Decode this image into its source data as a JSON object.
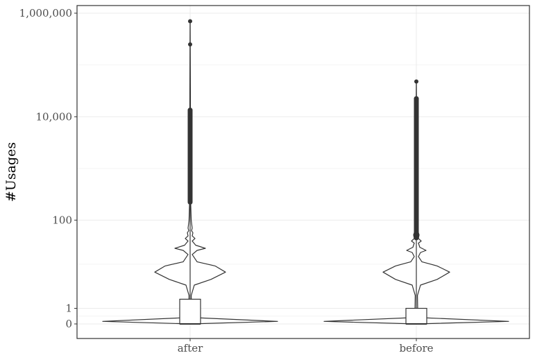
{
  "chart_data": {
    "type": "violin-boxplot",
    "title": "",
    "xlabel": "",
    "ylabel": "#Usages",
    "y_scale": "pseudo-log10",
    "y_ticks": [
      {
        "value": 0,
        "label": "0"
      },
      {
        "value": 1,
        "label": "1"
      },
      {
        "value": 100,
        "label": "100"
      },
      {
        "value": 10000,
        "label": "10,000"
      },
      {
        "value": 1000000,
        "label": "1,000,000"
      }
    ],
    "ylim": [
      0,
      1000000
    ],
    "grid": true,
    "categories": [
      "after",
      "before"
    ],
    "series": [
      {
        "category": "after",
        "box": {
          "q1": 0,
          "median": 0,
          "q3": 2,
          "whisker_low": 0,
          "whisker_high": 200
        },
        "outlier_range": [
          200,
          15000
        ],
        "sparse_outliers": [
          250000,
          700000
        ],
        "max": 700000
      },
      {
        "category": "before",
        "box": {
          "q1": 0,
          "median": 0,
          "q3": 1,
          "whisker_low": 0,
          "whisker_high": 40
        },
        "outlier_range": [
          40,
          25000
        ],
        "sparse_outliers": [
          48000
        ],
        "max": 48000
      }
    ]
  },
  "colors": {
    "line": "#333333",
    "grid_major": "#ebebeb",
    "grid_minor": "#f4f4f4",
    "panel_border": "#333333",
    "background": "#ffffff",
    "tick_text": "#4d4d4d"
  }
}
